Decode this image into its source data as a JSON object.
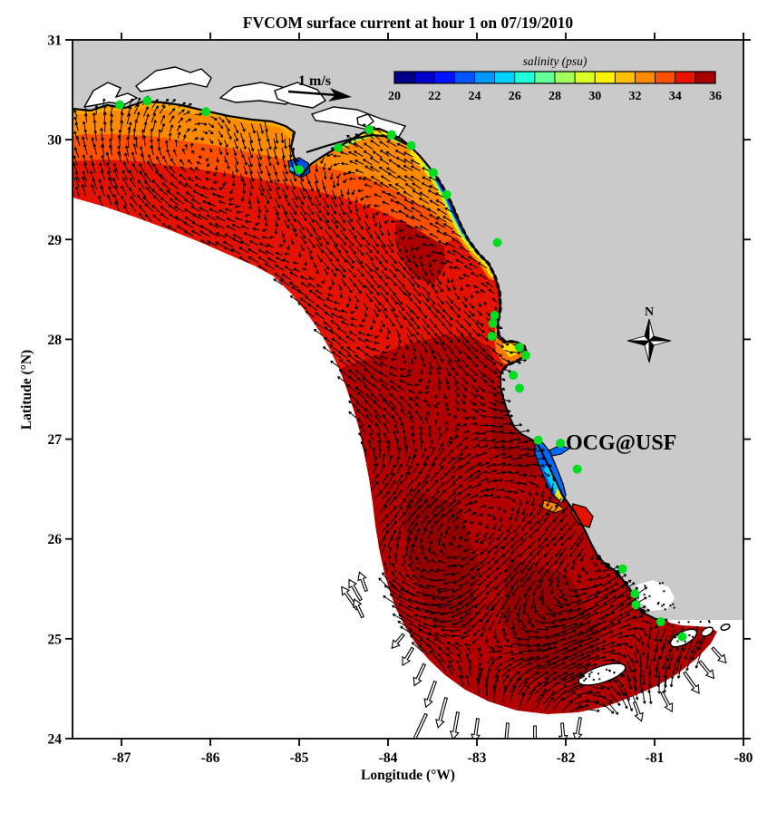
{
  "figure": {
    "title": "FVCOM surface current at hour 1 on 07/19/2010",
    "xlabel": "Longitude (°W)",
    "ylabel": "Latitude (°N)",
    "x_tick_values": [
      -87,
      -86,
      -85,
      -84,
      -83,
      -82,
      -81,
      -80
    ],
    "x_tick_labels": [
      "-87",
      "-86",
      "-85",
      "-84",
      "-83",
      "-82",
      "-81",
      "-80"
    ],
    "y_tick_values": [
      24,
      25,
      26,
      27,
      28,
      29,
      30,
      31
    ],
    "y_tick_labels": [
      "24",
      "25",
      "26",
      "27",
      "28",
      "29",
      "30",
      "31"
    ],
    "scale_arrow_label": "1 m/s",
    "compass_label": "N",
    "annotation": {
      "text": "OCG@USF",
      "color": "#fa0000"
    },
    "colorbar": {
      "label": "salinity (psu)",
      "tick_labels": [
        "20",
        "22",
        "24",
        "26",
        "28",
        "30",
        "32",
        "34",
        "36"
      ],
      "tick_values": [
        20,
        22,
        24,
        26,
        28,
        30,
        32,
        34,
        36
      ],
      "min": 20,
      "max": 36,
      "segment_colors": [
        "#000089",
        "#0000cd",
        "#0013ff",
        "#0055ff",
        "#0098ff",
        "#00d3ff",
        "#1fffd9",
        "#63ff9b",
        "#a2ff5c",
        "#d9ff24",
        "#fff200",
        "#ffc000",
        "#ff8a00",
        "#ff5000",
        "#e81400",
        "#a80000"
      ]
    },
    "station_marker_color": "#00dd22",
    "land_color": "#cacaca",
    "sea_base_color": "#e41200"
  },
  "chart_data": {
    "type": "heatmap",
    "title": "FVCOM surface current at hour 1 on 07/19/2010",
    "xlabel": "Longitude (°W)",
    "ylabel": "Latitude (°N)",
    "xlim": [
      -87.55,
      -80
    ],
    "ylim": [
      24,
      31
    ],
    "grid": false,
    "colorbar": {
      "label": "salinity (psu)",
      "ticks": [
        20,
        22,
        24,
        26,
        28,
        30,
        32,
        34,
        36
      ],
      "min": 20,
      "max": 36,
      "palette": [
        "#000089",
        "#0000cd",
        "#0013ff",
        "#0055ff",
        "#0098ff",
        "#00d3ff",
        "#1fffd9",
        "#63ff9b",
        "#a2ff5c",
        "#d9ff24",
        "#fff200",
        "#ffc000",
        "#ff8a00",
        "#ff5000",
        "#e81400",
        "#a80000"
      ]
    },
    "vector_field": {
      "quantity": "surface current",
      "reference_vector": "1 m/s"
    },
    "salinity_regions": [
      {
        "area": "offshore and southern shelf (deep red)",
        "salinity_psu": 35.5
      },
      {
        "area": "mid-shelf (bright red)",
        "salinity_psu": 34.5
      },
      {
        "area": "northern Panhandle coastal band (orange)",
        "salinity_psu": 32.5
      },
      {
        "area": "Big Bend nearshore plume (blue-yellow band)",
        "salinity_psu": 24
      },
      {
        "area": "Panama City bay mouth (blue patch)",
        "salinity_psu": 23
      },
      {
        "area": "Tampa Bay estuary (blue-cyan)",
        "salinity_psu": 23
      }
    ],
    "stations_lon_lat": [
      [
        -87.02,
        30.35
      ],
      [
        -86.71,
        30.39
      ],
      [
        -86.05,
        30.28
      ],
      [
        -85.0,
        29.7
      ],
      [
        -84.56,
        29.92
      ],
      [
        -84.21,
        30.1
      ],
      [
        -83.96,
        30.05
      ],
      [
        -83.74,
        29.94
      ],
      [
        -83.49,
        29.67
      ],
      [
        -83.34,
        29.45
      ],
      [
        -82.77,
        28.97
      ],
      [
        -82.8,
        28.24
      ],
      [
        -82.82,
        28.16
      ],
      [
        -82.83,
        28.03
      ],
      [
        -82.52,
        27.92
      ],
      [
        -82.45,
        27.84
      ],
      [
        -82.59,
        27.64
      ],
      [
        -82.52,
        27.51
      ],
      [
        -82.31,
        26.99
      ],
      [
        -82.06,
        26.96
      ],
      [
        -81.87,
        26.7
      ],
      [
        -81.36,
        25.7
      ],
      [
        -81.22,
        25.45
      ],
      [
        -81.21,
        25.34
      ],
      [
        -80.93,
        25.17
      ],
      [
        -80.69,
        25.02
      ]
    ]
  }
}
